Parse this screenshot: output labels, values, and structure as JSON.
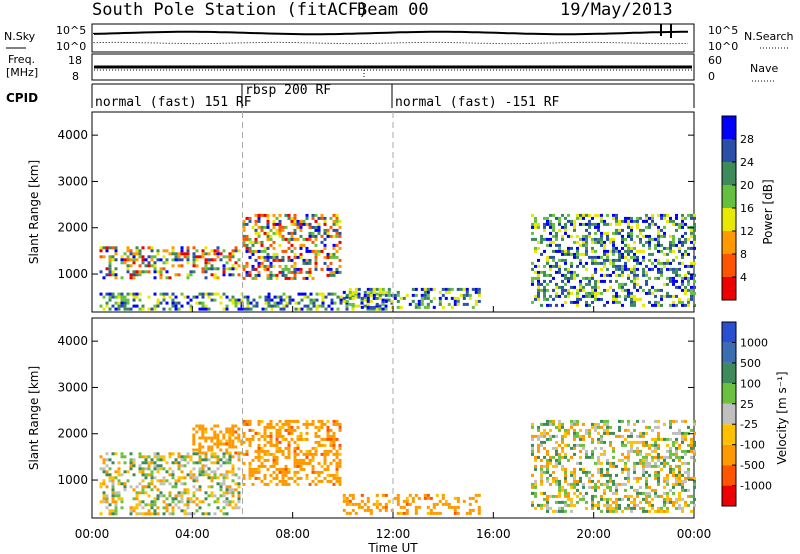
{
  "header": {
    "station": "South Pole Station (fitACF)",
    "beam": "Beam 00",
    "date": "19/May/2013"
  },
  "top_panels": {
    "nsky": {
      "label": "N.Sky",
      "ticks": [
        "10^5",
        "10^0"
      ],
      "right_ticks": [
        "10^5",
        "10^0"
      ],
      "right_label": "N.Search"
    },
    "freq": {
      "label_line1": "Freq.",
      "label_line2": "[MHz]",
      "ticks": [
        "18",
        "8"
      ],
      "right_ticks": [
        "60",
        "0"
      ],
      "right_label": "Nave"
    },
    "cpid": {
      "label": "CPID",
      "segments": [
        {
          "text": "normal (fast) 151 RF",
          "start": 0,
          "end": 6
        },
        {
          "text": "rbsp 200 RF",
          "start": 6,
          "end": 12
        },
        {
          "text": "normal (fast) -151 RF",
          "start": 12,
          "end": 24
        }
      ]
    }
  },
  "chart_data": [
    {
      "type": "heatmap",
      "title": "Power",
      "ylabel": "Slant Range [km]",
      "xlabel": "Time UT",
      "xlim": [
        0,
        24
      ],
      "ylim": [
        180,
        4500
      ],
      "xticks": [
        "00:00",
        "04:00",
        "08:00",
        "12:00",
        "16:00",
        "20:00",
        "00:00"
      ],
      "yticks": [
        1000,
        2000,
        3000,
        4000
      ],
      "colorbar": {
        "label": "Power [dB]",
        "ticks": [
          "28",
          "24",
          "20",
          "16",
          "12",
          "8",
          "4"
        ],
        "colors": [
          "#0000ff",
          "#2a4fa8",
          "#3d8a5a",
          "#66c040",
          "#e8e800",
          "#ff9900",
          "#ff5500",
          "#ee0000"
        ]
      },
      "echo_regions": [
        {
          "t0": 0.3,
          "t1": 5.9,
          "r0": 900,
          "r1": 1600,
          "value": "high"
        },
        {
          "t0": 0.3,
          "t1": 12,
          "r0": 250,
          "r1": 600,
          "value": "mid"
        },
        {
          "t0": 6.0,
          "t1": 9.9,
          "r0": 900,
          "r1": 2300,
          "value": "high"
        },
        {
          "t0": 10,
          "t1": 15.5,
          "r0": 300,
          "r1": 700,
          "value": "mid"
        },
        {
          "t0": 17.5,
          "t1": 24,
          "r0": 300,
          "r1": 2300,
          "value": "mid"
        }
      ]
    },
    {
      "type": "heatmap",
      "title": "Velocity",
      "ylabel": "Slant Range [km]",
      "xlabel": "Time UT",
      "xlim": [
        0,
        24
      ],
      "ylim": [
        180,
        4500
      ],
      "xticks": [
        "00:00",
        "04:00",
        "08:00",
        "12:00",
        "16:00",
        "20:00",
        "00:00"
      ],
      "yticks": [
        1000,
        2000,
        3000,
        4000
      ],
      "colorbar": {
        "label": "Velocity [m s⁻¹]",
        "ticks": [
          "1000",
          "500",
          "100",
          "25",
          "-25",
          "-100",
          "-500",
          "-1000"
        ],
        "colors": [
          "#2a4fd0",
          "#3b6eb0",
          "#3d8a5a",
          "#6cc040",
          "#c0c0c0",
          "#ffc000",
          "#ff9900",
          "#ff5500",
          "#ee0000"
        ]
      },
      "echo_regions": [
        {
          "t0": 0.3,
          "t1": 5.9,
          "r0": 300,
          "r1": 1600,
          "value": "mixed"
        },
        {
          "t0": 4.0,
          "t1": 6.0,
          "r0": 1600,
          "r1": 2200,
          "value": "negative"
        },
        {
          "t0": 6.0,
          "t1": 9.9,
          "r0": 900,
          "r1": 2300,
          "value": "negative"
        },
        {
          "t0": 10,
          "t1": 15.5,
          "r0": 300,
          "r1": 700,
          "value": "negative"
        },
        {
          "t0": 17.5,
          "t1": 24,
          "r0": 300,
          "r1": 2300,
          "value": "mixed"
        }
      ]
    }
  ]
}
